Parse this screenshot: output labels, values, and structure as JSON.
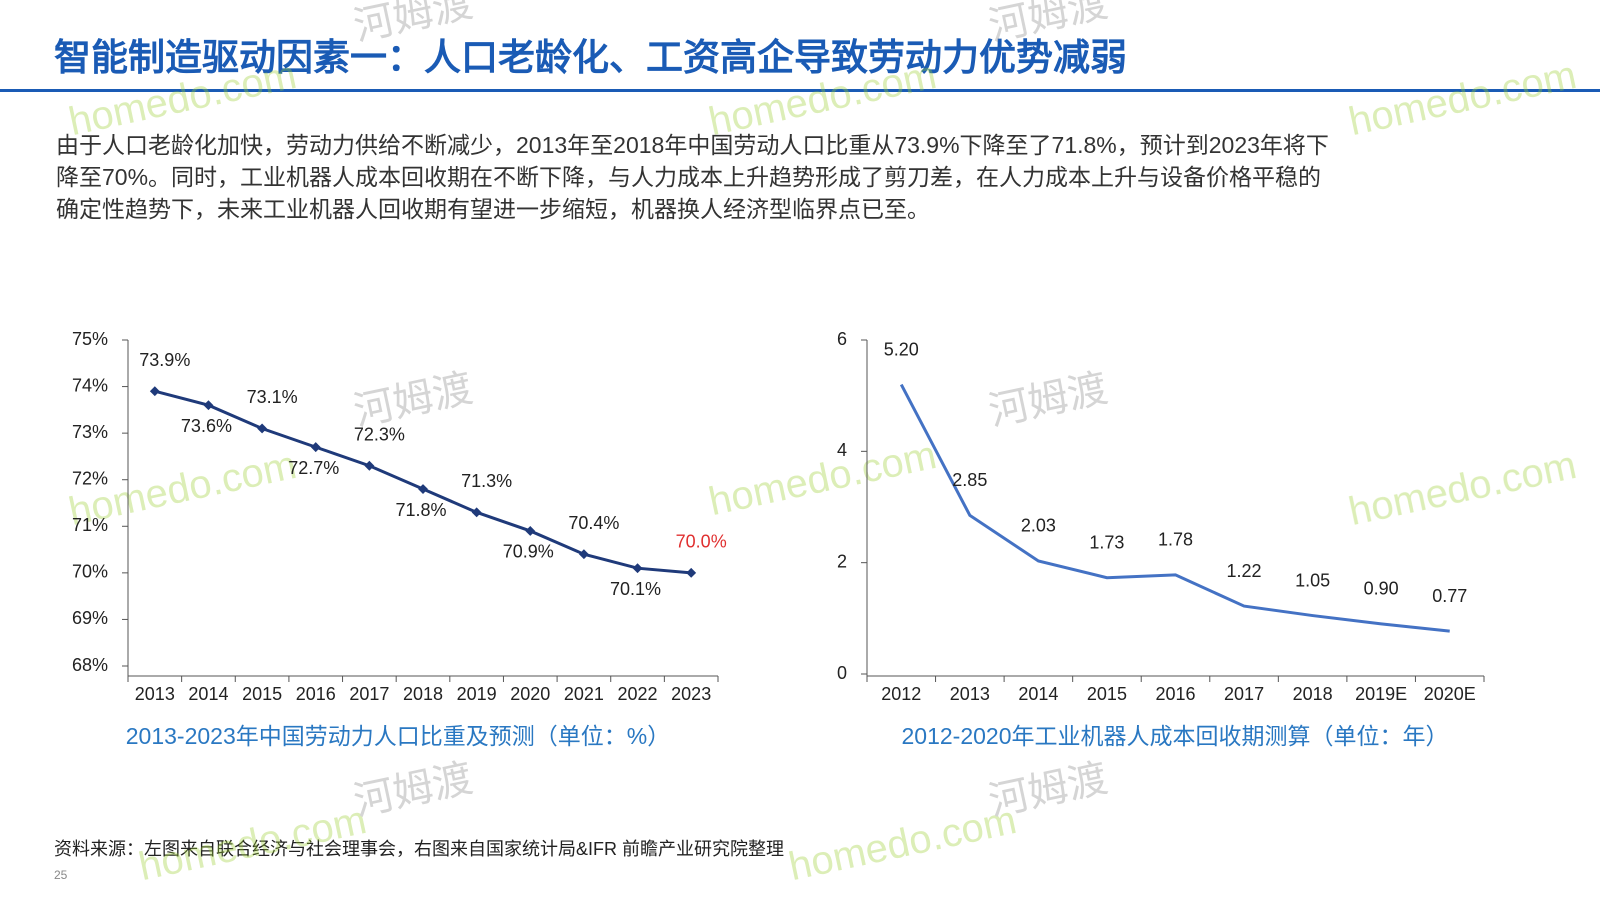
{
  "header": {
    "title": "智能制造驱动因素一：人口老龄化、工资高企导致劳动力优势减弱"
  },
  "body": {
    "lines": [
      "由于人口老龄化加快，劳动力供给不断减少，2013年至2018年中国劳动人口比重从73.9%下降至了71.8%，预计到2023年将下",
      "降至70%。同时，工业机器人成本回收期在不断下降，与人力成本上升趋势形成了剪刀差，在人力成本上升与设备价格平稳的",
      "确定性趋势下，未来工业机器人回收期有望进一步缩短，机器换人经济型临界点已至。"
    ]
  },
  "watermark": {
    "latin": "homedo.com",
    "chinese": "河姆渡"
  },
  "chart_data": [
    {
      "type": "line",
      "title": "2013-2023年中国劳动力人口比重及预测（单位：%）",
      "categories": [
        "2013",
        "2014",
        "2015",
        "2016",
        "2017",
        "2018",
        "2019",
        "2020",
        "2021",
        "2022",
        "2023"
      ],
      "values": [
        73.9,
        73.6,
        73.1,
        72.7,
        72.3,
        71.8,
        71.3,
        70.9,
        70.4,
        70.1,
        70.0
      ],
      "value_labels": [
        "73.9%",
        "73.6%",
        "73.1%",
        "72.7%",
        "72.3%",
        "71.8%",
        "71.3%",
        "70.9%",
        "70.4%",
        "70.1%",
        "70.0%"
      ],
      "value_label_colors": [
        "#222",
        "#222",
        "#222",
        "#222",
        "#222",
        "#222",
        "#222",
        "#222",
        "#222",
        "#222",
        "#e03030"
      ],
      "color": "#1f3a7a",
      "markers": true,
      "ylim": [
        68,
        75
      ],
      "yticks": [
        {
          "value": 68,
          "label": "68%"
        },
        {
          "value": 69,
          "label": "69%"
        },
        {
          "value": 70,
          "label": "70%"
        },
        {
          "value": 71,
          "label": "71%"
        },
        {
          "value": 72,
          "label": "72%"
        },
        {
          "value": 73,
          "label": "73%"
        },
        {
          "value": 74,
          "label": "74%"
        },
        {
          "value": 75,
          "label": "75%"
        }
      ]
    },
    {
      "type": "line",
      "title": "2012-2020年工业机器人成本回收期测算（单位：年）",
      "categories": [
        "2012",
        "2013",
        "2014",
        "2015",
        "2016",
        "2017",
        "2018",
        "2019E",
        "2020E"
      ],
      "values": [
        5.2,
        2.85,
        2.03,
        1.73,
        1.78,
        1.22,
        1.05,
        0.9,
        0.77
      ],
      "value_labels": [
        "5.20",
        "2.85",
        "2.03",
        "1.73",
        "1.78",
        "1.22",
        "1.05",
        "0.90",
        "0.77"
      ],
      "color": "#4472c4",
      "markers": false,
      "ylim": [
        0,
        6
      ],
      "yticks": [
        0,
        2,
        4,
        6
      ]
    }
  ],
  "source": "资料来源：左图来自联合经济与社会理事会，右图来自国家统计局&IFR 前瞻产业研究院整理",
  "page_number": "25"
}
